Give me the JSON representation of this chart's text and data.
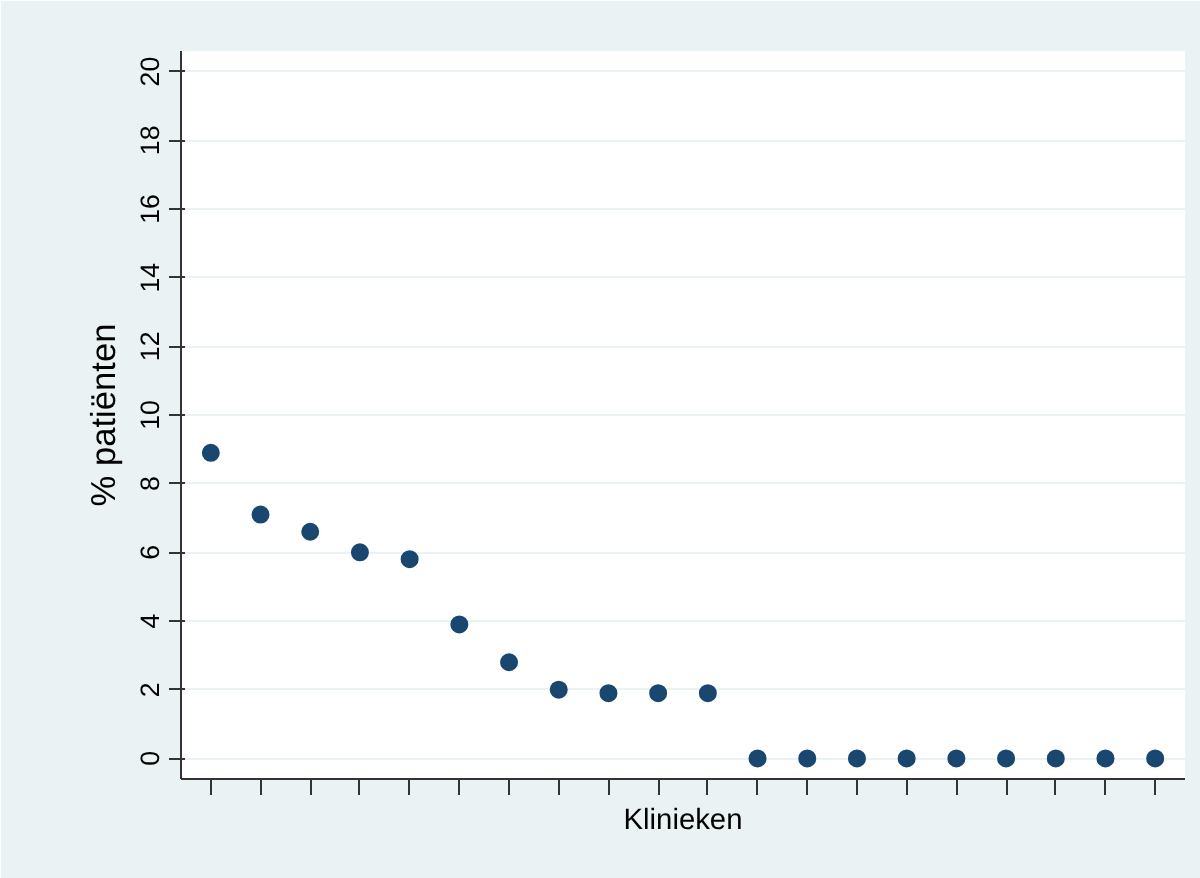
{
  "chart_data": {
    "type": "scatter",
    "xlabel": "Klinieken",
    "ylabel": "% patiënten",
    "categories": [
      null,
      null,
      null,
      null,
      null,
      null,
      null,
      null,
      null,
      null,
      null,
      null,
      null,
      null,
      null,
      null,
      null,
      null,
      null,
      null
    ],
    "series": [
      {
        "color": "#1a476f",
        "values": [
          8.9,
          7.1,
          6.6,
          6.0,
          5.8,
          3.9,
          2.8,
          2.0,
          1.9,
          1.9,
          1.9,
          0,
          0,
          0,
          0,
          0,
          0,
          0,
          0,
          0
        ]
      }
    ],
    "ylim": [
      -0.6,
      20.6
    ],
    "yticks": [
      0,
      2,
      4,
      6,
      8,
      10,
      12,
      14,
      16,
      18,
      20
    ],
    "grid": "y",
    "marker": "circle"
  }
}
